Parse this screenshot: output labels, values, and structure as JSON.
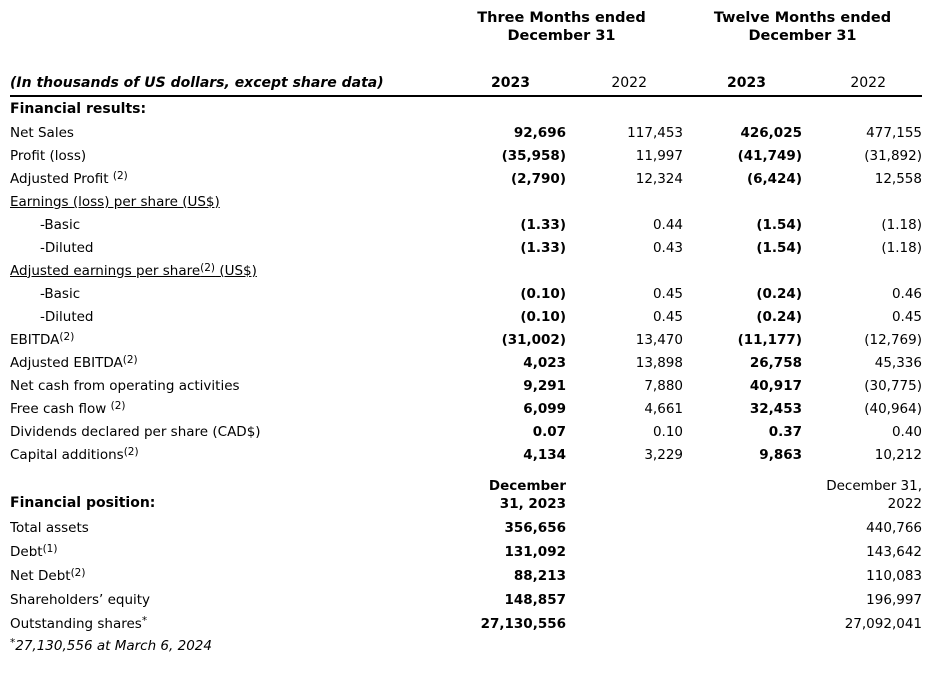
{
  "note": "(In thousands of US dollars, except share data)",
  "column_groups": {
    "three_months": "Three Months ended December 31",
    "twelve_months": "Twelve Months ended December 31"
  },
  "year_headers": [
    "2023",
    "2022",
    "2023",
    "2022"
  ],
  "financial_results": {
    "title": "Financial results:",
    "rows": [
      {
        "pre": "Net Sales",
        "sup": "",
        "post": "",
        "values": [
          "92,696",
          "117,453",
          "426,025",
          "477,155"
        ]
      },
      {
        "pre": "Profit (loss)",
        "sup": "",
        "post": "",
        "values": [
          "(35,958)",
          "11,997",
          "(41,749)",
          "(31,892)"
        ]
      },
      {
        "pre": "Adjusted Profit ",
        "sup": "(2)",
        "post": "",
        "values": [
          "(2,790)",
          "12,324",
          "(6,424)",
          "12,558"
        ]
      },
      {
        "pre": "Earnings (loss) per share (US$)",
        "sup": "",
        "post": "",
        "values": [
          "",
          "",
          "",
          ""
        ]
      },
      {
        "pre": "-Basic",
        "sup": "",
        "post": "",
        "values": [
          "(1.33)",
          "0.44",
          "(1.54)",
          "(1.18)"
        ]
      },
      {
        "pre": "-Diluted",
        "sup": "",
        "post": "",
        "values": [
          "(1.33)",
          "0.43",
          "(1.54)",
          "(1.18)"
        ]
      },
      {
        "pre": "Adjusted earnings per share",
        "sup": "(2)",
        "post": " (US$)",
        "values": [
          "",
          "",
          "",
          ""
        ]
      },
      {
        "pre": "-Basic",
        "sup": "",
        "post": "",
        "values": [
          "(0.10)",
          "0.45",
          "(0.24)",
          "0.46"
        ]
      },
      {
        "pre": "-Diluted",
        "sup": "",
        "post": "",
        "values": [
          "(0.10)",
          "0.45",
          "(0.24)",
          "0.45"
        ]
      },
      {
        "pre": "EBITDA",
        "sup": "(2)",
        "post": "",
        "values": [
          "(31,002)",
          "13,470",
          "(11,177)",
          "(12,769)"
        ]
      },
      {
        "pre": "Adjusted EBITDA",
        "sup": "(2)",
        "post": "",
        "values": [
          "4,023",
          "13,898",
          "26,758",
          "45,336"
        ]
      },
      {
        "pre": "Net cash from operating activities",
        "sup": "",
        "post": "",
        "values": [
          "9,291",
          "7,880",
          "40,917",
          "(30,775)"
        ]
      },
      {
        "pre": "Free cash flow ",
        "sup": "(2)",
        "post": "",
        "values": [
          "6,099",
          "4,661",
          "32,453",
          "(40,964)"
        ]
      },
      {
        "pre": "Dividends declared per share (CAD$)",
        "sup": "",
        "post": "",
        "values": [
          "0.07",
          "0.10",
          "0.37",
          "0.40"
        ]
      },
      {
        "pre": "Capital additions",
        "sup": "(2)",
        "post": "",
        "values": [
          "4,134",
          "3,229",
          "9,863",
          "10,212"
        ]
      }
    ]
  },
  "financial_position": {
    "title": "Financial position:",
    "col_2023": {
      "line1": "December",
      "line2": "31, 2023"
    },
    "col_2022": {
      "line1": "December 31,",
      "line2": "2022"
    },
    "rows": [
      {
        "pre": "Total assets",
        "sup": "",
        "values": [
          "356,656",
          "440,766"
        ]
      },
      {
        "pre": "Debt",
        "sup": "(1)",
        "values": [
          "131,092",
          "143,642"
        ]
      },
      {
        "pre": "Net Debt",
        "sup": "(2)",
        "values": [
          "88,213",
          "110,083"
        ]
      },
      {
        "pre": "Shareholders’ equity",
        "sup": "",
        "values": [
          "148,857",
          "196,997"
        ]
      },
      {
        "pre": "Outstanding shares",
        "sup": "*",
        "values": [
          "27,130,556",
          "27,092,041"
        ]
      }
    ]
  },
  "footnote": {
    "sup": "*",
    "text": "27,130,556 at March 6, 2024"
  }
}
